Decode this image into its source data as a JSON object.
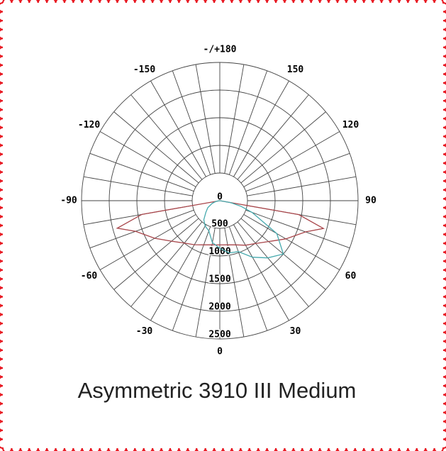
{
  "chart_data": {
    "type": "polar",
    "title": "Asymmetric 3910 III Medium",
    "x": [
      -90,
      -80,
      -75,
      -70,
      -60,
      -50,
      -40,
      -30,
      -20,
      -10,
      0,
      10,
      20,
      30,
      40,
      50,
      60,
      70,
      75,
      80,
      90
    ],
    "series": [
      {
        "color": "#a8454a",
        "values": [
          0,
          1430,
          1920,
          1620,
          1360,
          1140,
          1000,
          920,
          850,
          810,
          800,
          810,
          850,
          930,
          1010,
          1150,
          1380,
          1650,
          1940,
          1450,
          0
        ]
      },
      {
        "color": "#45a9ad",
        "values": [
          0,
          50,
          100,
          150,
          250,
          330,
          450,
          530,
          580,
          770,
          860,
          960,
          980,
          1180,
          1350,
          1500,
          1190,
          620,
          400,
          200,
          0
        ]
      }
    ],
    "rlim": [
      0,
      2500
    ],
    "rticks": [
      0,
      500,
      1000,
      1500,
      2000,
      2500
    ],
    "thetaticks": [
      0,
      30,
      60,
      90,
      120,
      150,
      {
        "value": 180,
        "label": "-/+180"
      },
      -150,
      -120,
      -90,
      -60,
      -30
    ],
    "thetagrid": [
      0,
      10,
      20,
      30,
      40,
      50,
      60,
      70,
      80,
      90,
      100,
      110,
      120,
      130,
      140,
      150,
      160,
      170,
      180,
      -170,
      -160,
      -150,
      -140,
      -130,
      -120,
      -110,
      -100,
      -90,
      -80,
      -70,
      -60,
      -50,
      -40,
      -30,
      -20,
      -10
    ]
  }
}
